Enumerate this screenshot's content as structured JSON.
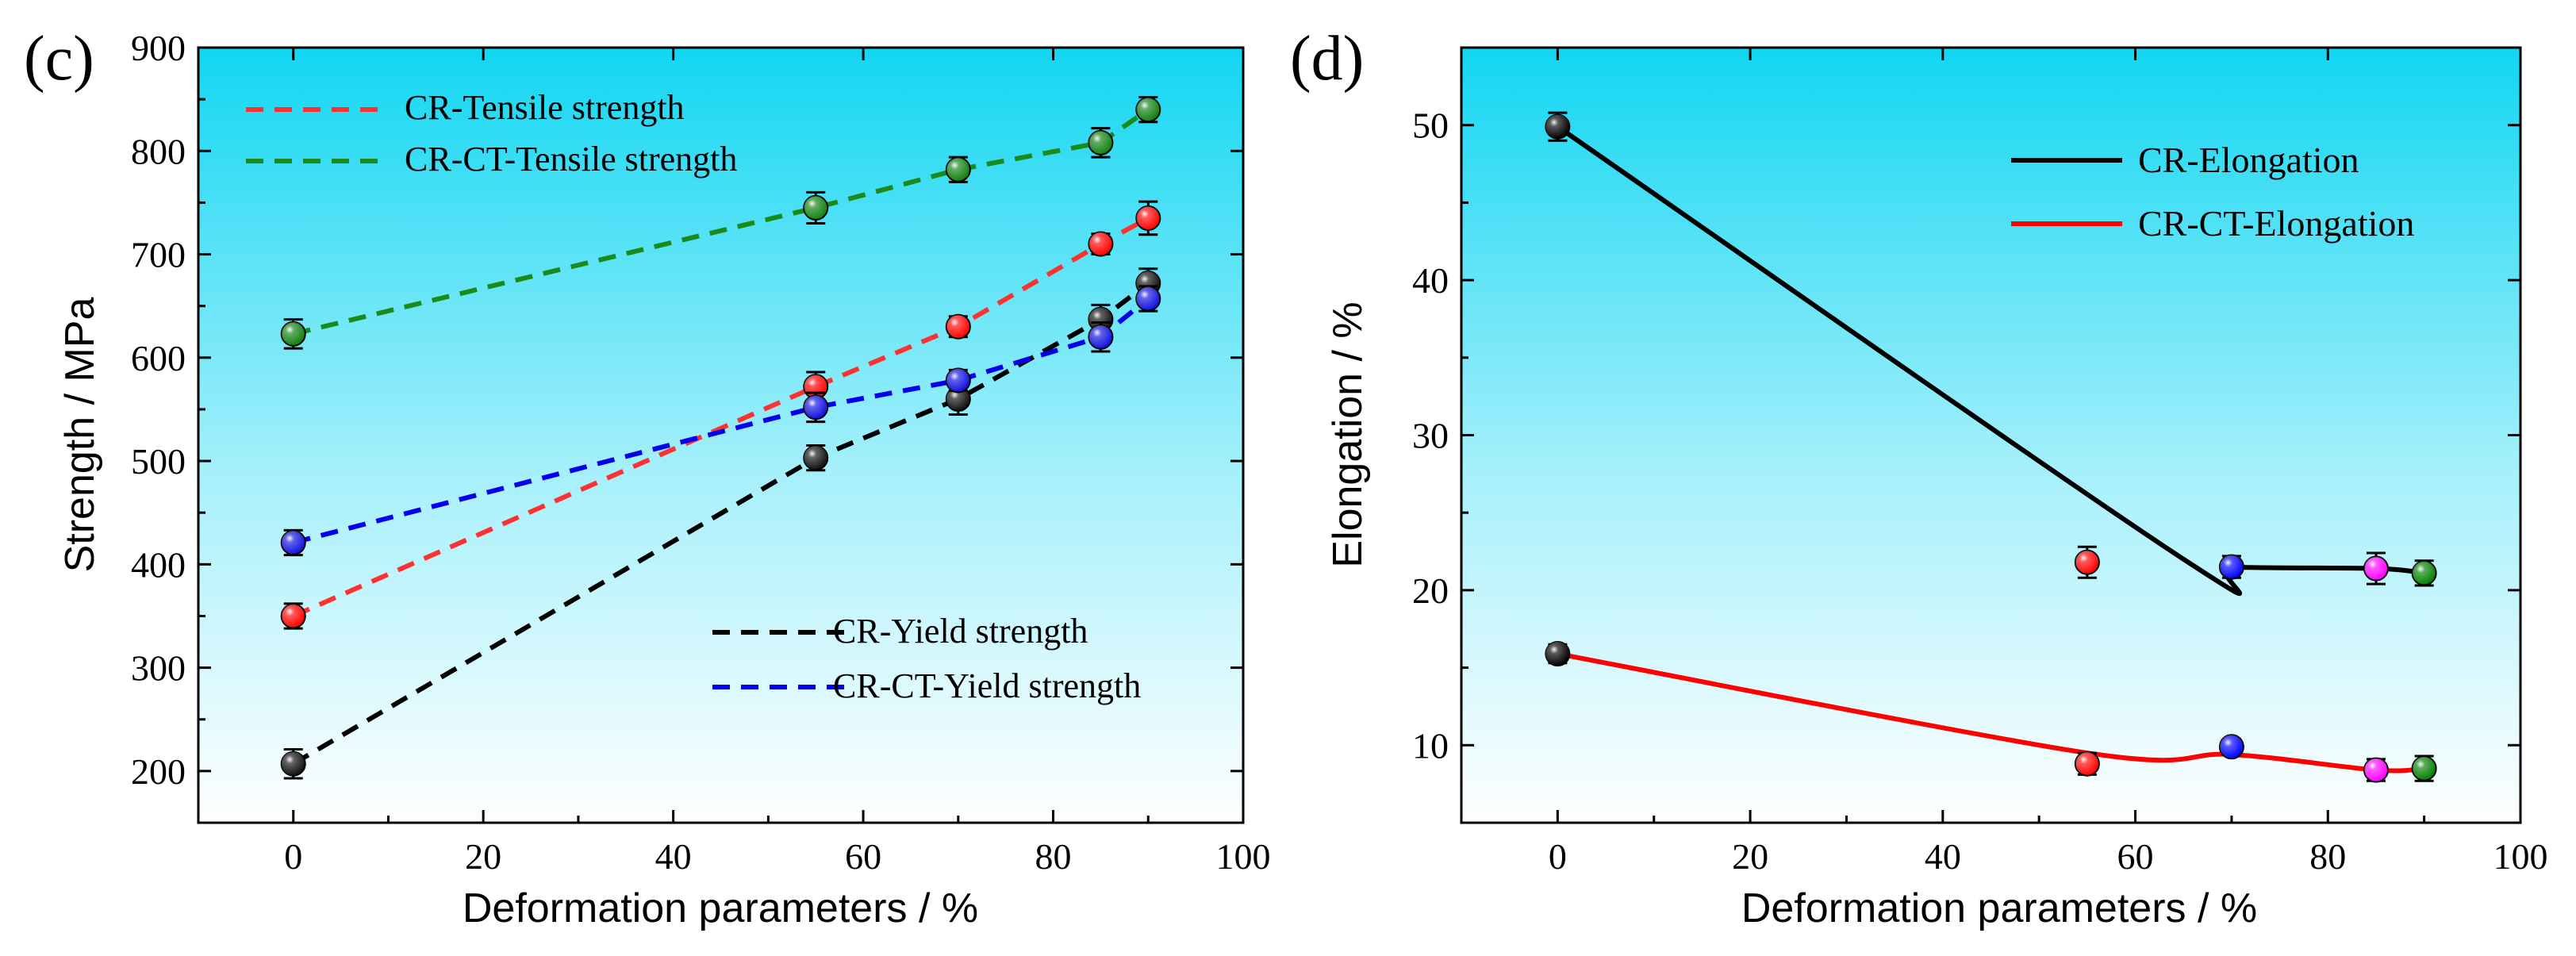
{
  "chart_data": [
    {
      "type": "line",
      "panel_label": "(c)",
      "xlabel": "Deformation  parameters  / %",
      "ylabel": "Strength / MPa",
      "xlim": [
        -10,
        100
      ],
      "ylim": [
        150,
        900
      ],
      "xticks": [
        0,
        20,
        40,
        60,
        80,
        100
      ],
      "yticks": [
        200,
        300,
        400,
        500,
        600,
        700,
        800,
        900
      ],
      "x": [
        0,
        55,
        70,
        85,
        90
      ],
      "point_colors": [
        "#000000",
        "#ff0000",
        "#0000ff",
        "#ff00ff",
        "#008000"
      ],
      "legend_top": [
        "CR-Tensile strength",
        "CR-CT-Tensile strength"
      ],
      "legend_bottom": [
        "CR-Yield strength",
        "CR-CT-Yield strength"
      ],
      "series": [
        {
          "name": "CR-Tensile strength",
          "color": "#ff3030",
          "line": "dashed",
          "marker_color": "#ff0000",
          "values": [
            350,
            572,
            630,
            710,
            735
          ],
          "errors": [
            12,
            14,
            10,
            10,
            16
          ]
        },
        {
          "name": "CR-CT-Tensile strength",
          "color": "#1a8a1a",
          "line": "dashed",
          "marker_color": "#108010",
          "values": [
            623,
            745,
            782,
            808,
            840
          ],
          "errors": [
            14,
            15,
            12,
            14,
            12
          ]
        },
        {
          "name": "CR-Yield strength",
          "color": "#000000",
          "line": "dashed",
          "marker_color": "#101010",
          "values": [
            207,
            503,
            560,
            637,
            672
          ],
          "errors": [
            14,
            12,
            15,
            14,
            14
          ]
        },
        {
          "name": "CR-CT-Yield strength",
          "color": "#0000ee",
          "line": "dashed",
          "marker_color": "#1010e0",
          "values": [
            421,
            552,
            578,
            620,
            657
          ],
          "errors": [
            12,
            14,
            10,
            14,
            12
          ]
        }
      ]
    },
    {
      "type": "line",
      "panel_label": "(d)",
      "xlabel": "Deformation  parameters  / %",
      "ylabel": "Elongation / %",
      "xlim": [
        -10,
        100
      ],
      "ylim": [
        5,
        55
      ],
      "xticks": [
        0,
        20,
        40,
        60,
        80,
        100
      ],
      "yticks": [
        10,
        20,
        30,
        40,
        50
      ],
      "x": [
        0,
        55,
        70,
        85,
        90
      ],
      "point_colors": [
        "#000000",
        "#ff0000",
        "#0000ff",
        "#ff00ff",
        "#008000"
      ],
      "legend": [
        "CR-Elongation",
        "CR-CT-Elongation"
      ],
      "series": [
        {
          "name": "CR-Elongation",
          "color": "#000000",
          "line": "solid",
          "values": [
            49.9,
            21.8,
            21.5,
            21.4,
            21.1
          ],
          "errors": [
            0.9,
            1.0,
            0.7,
            1.0,
            0.8
          ],
          "curve_x": [
            0,
            65,
            70,
            85,
            90
          ],
          "curve_y": [
            49.9,
            22.0,
            21.5,
            21.4,
            21.1
          ]
        },
        {
          "name": "CR-CT-Elongation",
          "color": "#ff0000",
          "line": "solid",
          "values": [
            15.9,
            8.8,
            9.9,
            8.4,
            8.5
          ],
          "errors": [
            0.6,
            0.7,
            0.5,
            0.7,
            0.8
          ],
          "curve_x": [
            0,
            55,
            70,
            85,
            90
          ],
          "curve_y": [
            15.9,
            9.5,
            9.4,
            8.4,
            8.5
          ]
        }
      ]
    }
  ]
}
